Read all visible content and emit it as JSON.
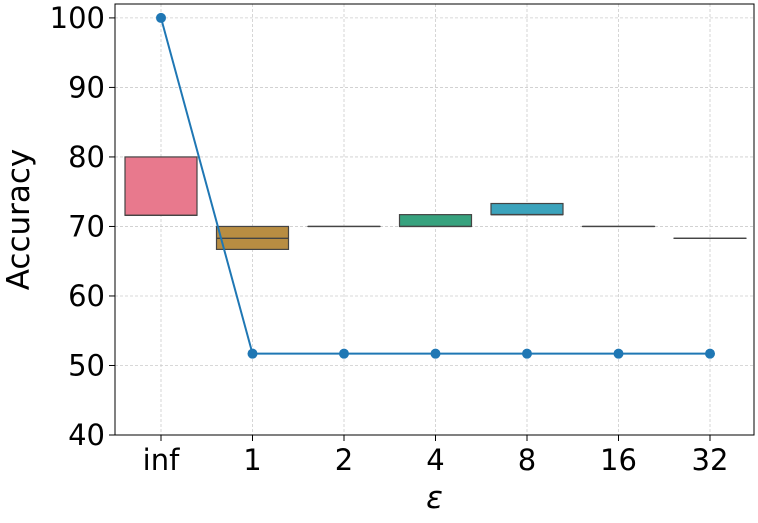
{
  "chart_data": {
    "type": "box",
    "xlabel": "ε",
    "ylabel": "Accuracy",
    "categories": [
      "inf",
      "1",
      "2",
      "4",
      "8",
      "16",
      "32"
    ],
    "ylim": [
      40,
      102
    ],
    "yticks": [
      40,
      50,
      60,
      70,
      80,
      90,
      100
    ],
    "grid": true,
    "boxes": [
      {
        "category": "inf",
        "q1": 71.6,
        "median": 71.6,
        "q3": 80.0,
        "whisker_low": 71.6,
        "whisker_high": 80.0,
        "color": "#e8798d"
      },
      {
        "category": "1",
        "q1": 66.7,
        "median": 68.3,
        "q3": 70.0,
        "whisker_low": 66.7,
        "whisker_high": 70.0,
        "color": "#b88d42"
      },
      {
        "category": "2",
        "q1": 70.0,
        "median": 70.0,
        "q3": 70.0,
        "whisker_low": 70.0,
        "whisker_high": 70.0,
        "color": "#7d9e3c"
      },
      {
        "category": "4",
        "q1": 70.0,
        "median": 70.0,
        "q3": 71.7,
        "whisker_low": 70.0,
        "whisker_high": 71.7,
        "color": "#37a27e"
      },
      {
        "category": "8",
        "q1": 71.7,
        "median": 71.7,
        "q3": 73.3,
        "whisker_low": 71.7,
        "whisker_high": 73.3,
        "color": "#3ba3bc"
      },
      {
        "category": "16",
        "q1": 70.0,
        "median": 70.0,
        "q3": 70.0,
        "whisker_low": 70.0,
        "whisker_high": 70.0,
        "color": "#7b97dc"
      },
      {
        "category": "32",
        "q1": 68.3,
        "median": 68.3,
        "q3": 68.3,
        "whisker_low": 68.3,
        "whisker_high": 68.3,
        "color": "#d988dc"
      }
    ],
    "series": [
      {
        "type": "line",
        "marker": "circle",
        "color": "#1f77b4",
        "values": [
          100,
          51.7,
          51.7,
          51.7,
          51.7,
          51.7,
          51.7
        ]
      }
    ],
    "colors": {
      "axis": "#000000",
      "grid": "#cccccc",
      "box_edge": "#444444"
    }
  }
}
